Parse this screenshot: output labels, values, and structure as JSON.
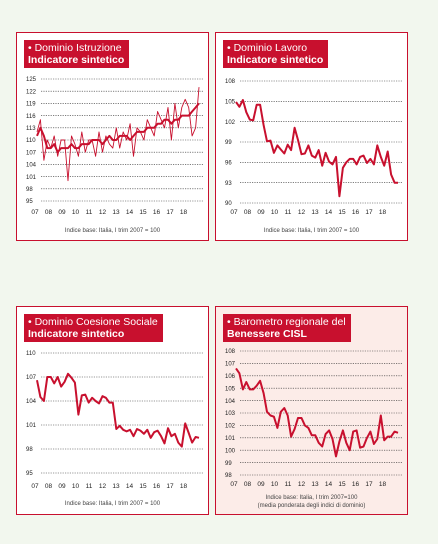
{
  "panels": [
    {
      "title_line1": "• Dominio Istruzione",
      "title_line2": "Indicatore sintetico",
      "note_line1": "Indice base: Italia, I trim 2007 = 100",
      "note_line2": ""
    },
    {
      "title_line1": "• Dominio Lavoro",
      "title_line2": "Indicatore sintetico",
      "note_line1": "Indice base: Italia, I trim 2007 = 100",
      "note_line2": ""
    },
    {
      "title_line1": "• Dominio Coesione Sociale",
      "title_line2": "Indicatore sintetico",
      "note_line1": "Indice base: Italia, I trim 2007 = 100",
      "note_line2": ""
    },
    {
      "title_line1": "• Barometro regionale del",
      "title_line2": "Benessere CISL",
      "note_line1": "Indice base: Italia, I trim 2007=100",
      "note_line2": "(media ponderata degli indici di dominio)"
    }
  ],
  "colors": {
    "accent": "#c8102e",
    "page_bg": "#f2f7ee",
    "pink_panel": "#fcece8"
  },
  "chart_data": [
    {
      "type": "line",
      "title": "Dominio Istruzione - Indicatore sintetico",
      "xlabel": "",
      "ylabel": "",
      "x_ticks": [
        "07",
        "08",
        "09",
        "10",
        "11",
        "12",
        "13",
        "14",
        "15",
        "16",
        "17",
        "18"
      ],
      "y_ticks": [
        95,
        98,
        101,
        104,
        107,
        110,
        113,
        116,
        119,
        122,
        125
      ],
      "ylim": [
        95,
        125
      ],
      "grid": "horizontal dotted",
      "series": [
        {
          "style": "thick",
          "values": [
            111,
            113,
            111,
            108,
            108,
            109,
            107,
            108,
            108,
            108,
            109,
            108,
            108,
            109,
            109,
            109,
            110,
            110,
            110,
            109,
            110,
            111,
            110,
            110,
            111,
            111,
            111,
            110,
            111,
            112,
            112,
            112,
            113,
            113,
            113,
            114,
            114,
            115,
            115,
            114,
            115,
            115,
            116,
            116,
            116,
            117,
            118,
            119
          ]
        },
        {
          "style": "thin",
          "values": [
            112,
            115,
            105,
            110,
            108,
            111,
            106,
            110,
            110,
            100,
            111,
            109,
            106,
            112,
            107,
            110,
            110,
            106,
            112,
            107,
            111,
            109,
            108,
            113,
            108,
            112,
            110,
            114,
            106,
            113,
            112,
            110,
            115,
            113,
            111,
            117,
            115,
            113,
            118,
            110,
            119,
            113,
            118,
            120,
            118,
            111,
            113,
            123
          ]
        }
      ]
    },
    {
      "type": "line",
      "title": "Dominio Lavoro - Indicatore sintetico",
      "xlabel": "",
      "ylabel": "",
      "x_ticks": [
        "07",
        "08",
        "09",
        "10",
        "11",
        "12",
        "13",
        "14",
        "15",
        "16",
        "17",
        "18"
      ],
      "y_ticks": [
        90,
        93,
        96,
        99,
        102,
        105,
        108
      ],
      "ylim": [
        90,
        108
      ],
      "grid": "horizontal dotted",
      "series": [
        {
          "style": "thick",
          "values": [
            104.9,
            104.2,
            105.2,
            103.4,
            102.3,
            102.2,
            104.5,
            104.5,
            101.5,
            99.1,
            99.2,
            97.4,
            98.5,
            97.9,
            97.3,
            98.6,
            97.8,
            101.1,
            99.3,
            97.2,
            97.3,
            98.5,
            97.0,
            96.7,
            97.8,
            95.5,
            97.4,
            96.1,
            95.7,
            96.8,
            91.0,
            95.2,
            96.0,
            96.5,
            96.5,
            95.7,
            96.8,
            97.0,
            95.9,
            96.5,
            95.7,
            98.5,
            96.8,
            95.5,
            97.6,
            94.2,
            93.0,
            93.0
          ]
        }
      ]
    },
    {
      "type": "line",
      "title": "Dominio Coesione Sociale - Indicatore sintetico",
      "xlabel": "",
      "ylabel": "",
      "x_ticks": [
        "07",
        "08",
        "09",
        "10",
        "11",
        "12",
        "13",
        "14",
        "15",
        "16",
        "17",
        "18"
      ],
      "y_ticks": [
        95,
        98,
        101,
        104,
        107,
        110
      ],
      "ylim": [
        95,
        110
      ],
      "grid": "horizontal dotted",
      "series": [
        {
          "style": "thick",
          "values": [
            106.6,
            104.5,
            104.0,
            107.0,
            107.0,
            106.2,
            107.0,
            105.8,
            106.4,
            107.4,
            106.9,
            106.3,
            102.3,
            104.7,
            104.8,
            103.8,
            104.4,
            104.0,
            103.7,
            104.6,
            104.4,
            103.8,
            103.8,
            100.5,
            100.9,
            100.4,
            100.2,
            100.4,
            99.6,
            100.5,
            100.3,
            99.9,
            100.4,
            99.4,
            100.1,
            100.3,
            99.6,
            98.7,
            100.6,
            99.6,
            99.9,
            98.8,
            98.3,
            101.2,
            100.0,
            98.8,
            99.5,
            99.4
          ]
        }
      ]
    },
    {
      "type": "line",
      "title": "Barometro regionale del Benessere CISL",
      "xlabel": "",
      "ylabel": "",
      "x_ticks": [
        "07",
        "08",
        "09",
        "10",
        "11",
        "12",
        "13",
        "14",
        "15",
        "16",
        "17",
        "18"
      ],
      "y_ticks": [
        98,
        99,
        100,
        101,
        102,
        103,
        104,
        105,
        106,
        107,
        108
      ],
      "ylim": [
        98,
        108
      ],
      "grid": "horizontal dotted",
      "series": [
        {
          "style": "thick",
          "values": [
            106.6,
            106.2,
            104.9,
            105.5,
            104.9,
            104.9,
            105.2,
            105.6,
            104.6,
            103.1,
            102.8,
            102.7,
            101.8,
            103.1,
            103.4,
            102.8,
            101.1,
            101.7,
            102.6,
            102.6,
            102.0,
            101.8,
            101.2,
            101.2,
            100.6,
            100.3,
            101.3,
            101.6,
            100.9,
            99.5,
            100.7,
            101.6,
            100.6,
            100.0,
            101.5,
            101.6,
            100.2,
            100.3,
            101.0,
            101.5,
            100.5,
            100.9,
            102.8,
            100.8,
            101.1,
            101.1,
            101.5,
            101.4
          ]
        }
      ]
    }
  ]
}
